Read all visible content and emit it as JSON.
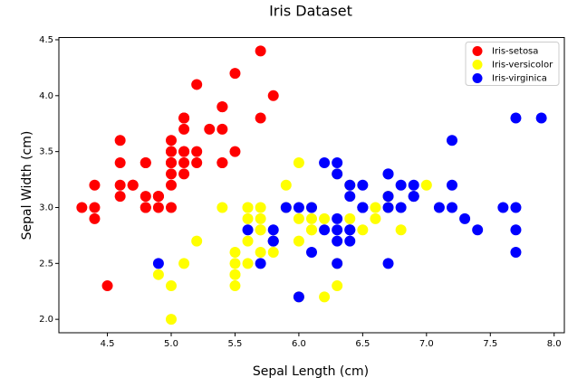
{
  "chart_data": {
    "type": "scatter",
    "title": "Iris Dataset",
    "x_label": "Sepal Length (cm)",
    "y_label": "Sepal Width (cm)",
    "xlim": [
      4.12,
      8.08
    ],
    "ylim": [
      1.88,
      4.52
    ],
    "xticks": [
      4.5,
      {
        "value": 5,
        "label": "5.0"
      },
      5.5,
      {
        "value": 6,
        "label": "6.0"
      },
      6.5,
      {
        "value": 7,
        "label": "7.0"
      },
      7.5,
      {
        "value": 8,
        "label": "8.0"
      }
    ],
    "yticks": [
      {
        "value": 2,
        "label": "2.0"
      },
      2.5,
      {
        "value": 3,
        "label": "3.0"
      },
      3.5,
      {
        "value": 4,
        "label": "4.0"
      },
      4.5
    ],
    "grid": false,
    "legend": "upper right",
    "series": [
      {
        "name": "Iris-setosa",
        "color": "#ff0000",
        "x": [
          5.1,
          4.9,
          4.7,
          4.6,
          5.0,
          5.4,
          4.6,
          5.0,
          4.4,
          4.9,
          5.4,
          4.8,
          4.8,
          4.3,
          5.8,
          5.7,
          5.4,
          5.1,
          5.7,
          5.1,
          5.4,
          5.1,
          4.6,
          5.1,
          4.8,
          5.0,
          5.0,
          5.2,
          5.2,
          4.7,
          4.8,
          5.4,
          5.2,
          5.5,
          4.9,
          5.0,
          5.5,
          4.9,
          4.4,
          5.1,
          5.0,
          4.5,
          4.4,
          5.0,
          5.1,
          4.8,
          5.1,
          4.6,
          5.3,
          5.0
        ],
        "y": [
          3.5,
          3.0,
          3.2,
          3.1,
          3.6,
          3.9,
          3.4,
          3.4,
          2.9,
          3.1,
          3.7,
          3.4,
          3.0,
          3.0,
          4.0,
          4.4,
          3.9,
          3.5,
          3.8,
          3.8,
          3.4,
          3.7,
          3.6,
          3.3,
          3.4,
          3.0,
          3.4,
          3.5,
          3.4,
          3.2,
          3.1,
          3.4,
          4.1,
          4.2,
          3.1,
          3.2,
          3.5,
          3.1,
          3.0,
          3.4,
          3.5,
          2.3,
          3.2,
          3.5,
          3.8,
          3.0,
          3.8,
          3.2,
          3.7,
          3.3
        ]
      },
      {
        "name": "Iris-versicolor",
        "color": "#ffff00",
        "x": [
          7.0,
          6.4,
          6.9,
          5.5,
          6.5,
          5.7,
          6.3,
          4.9,
          6.6,
          5.2,
          5.0,
          5.9,
          6.0,
          6.1,
          5.6,
          6.7,
          5.6,
          5.8,
          6.2,
          5.6,
          5.9,
          6.1,
          6.3,
          6.1,
          6.4,
          6.6,
          6.8,
          6.7,
          6.0,
          5.7,
          5.5,
          5.5,
          5.8,
          6.0,
          5.4,
          6.0,
          6.7,
          6.3,
          5.6,
          5.5,
          5.5,
          6.1,
          5.8,
          5.0,
          5.6,
          5.7,
          5.7,
          6.2,
          5.1,
          5.7
        ],
        "y": [
          3.2,
          3.2,
          3.1,
          2.3,
          2.8,
          2.8,
          3.3,
          2.4,
          2.9,
          2.7,
          2.0,
          3.0,
          2.2,
          2.9,
          2.9,
          3.1,
          3.0,
          2.7,
          2.2,
          2.5,
          3.2,
          2.8,
          2.5,
          2.8,
          2.9,
          3.0,
          2.8,
          3.0,
          2.9,
          2.6,
          2.4,
          2.4,
          2.7,
          2.7,
          3.0,
          3.4,
          3.1,
          2.3,
          3.0,
          2.5,
          2.6,
          3.0,
          2.6,
          2.3,
          2.7,
          3.0,
          2.9,
          2.9,
          2.5,
          2.8
        ]
      },
      {
        "name": "Iris-virginica",
        "color": "#0000ff",
        "x": [
          6.3,
          5.8,
          7.1,
          6.3,
          6.5,
          7.6,
          4.9,
          7.3,
          6.7,
          7.2,
          6.5,
          6.4,
          6.8,
          5.7,
          5.8,
          6.4,
          6.5,
          7.7,
          7.7,
          6.0,
          6.9,
          5.6,
          7.7,
          6.3,
          6.7,
          7.2,
          6.2,
          6.1,
          6.4,
          7.2,
          7.4,
          7.9,
          6.4,
          6.3,
          6.1,
          7.7,
          6.3,
          6.4,
          6.0,
          6.9,
          6.7,
          6.9,
          5.8,
          6.8,
          6.7,
          6.7,
          6.3,
          6.5,
          6.2,
          5.9
        ],
        "y": [
          3.3,
          2.7,
          3.0,
          2.9,
          3.0,
          3.0,
          2.5,
          2.9,
          2.5,
          3.6,
          3.2,
          2.7,
          3.0,
          2.5,
          2.8,
          3.2,
          3.0,
          3.8,
          2.6,
          2.2,
          3.2,
          2.8,
          2.8,
          2.7,
          3.3,
          3.2,
          2.8,
          3.0,
          2.8,
          3.0,
          2.8,
          3.8,
          2.8,
          2.8,
          2.6,
          3.0,
          3.4,
          3.1,
          3.0,
          3.1,
          3.1,
          3.1,
          2.7,
          3.2,
          3.3,
          3.0,
          2.5,
          3.0,
          3.4,
          3.0
        ]
      }
    ]
  }
}
